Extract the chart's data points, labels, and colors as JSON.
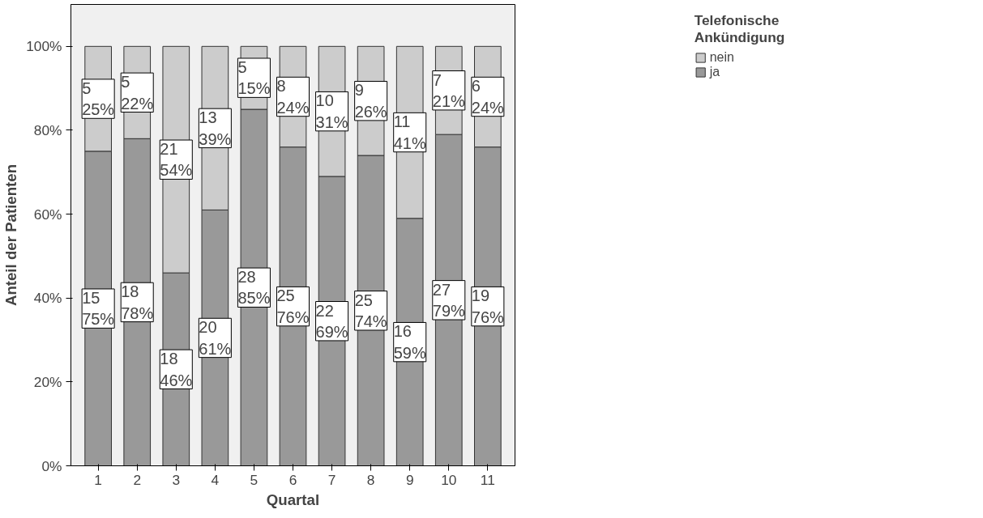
{
  "chart_data": {
    "type": "bar",
    "stacked": true,
    "xlabel": "Quartal",
    "ylabel": "Anteil der Patienten",
    "legend_title": "Telefonische Ankündigung",
    "categories": [
      "1",
      "2",
      "3",
      "4",
      "5",
      "6",
      "7",
      "8",
      "9",
      "10",
      "11"
    ],
    "series": [
      {
        "name": "ja",
        "color": "#999999",
        "values": [
          75,
          78,
          46,
          61,
          85,
          76,
          69,
          74,
          59,
          79,
          76
        ],
        "value_labels": [
          "15\n75%",
          "18\n78%",
          "18\n46%",
          "20\n61%",
          "28\n85%",
          "25\n76%",
          "22\n69%",
          "25\n74%",
          "16\n59%",
          "27\n79%",
          "19\n76%"
        ]
      },
      {
        "name": "nein",
        "color": "#cccccc",
        "values": [
          25,
          22,
          54,
          39,
          15,
          24,
          31,
          26,
          41,
          21,
          24
        ],
        "value_labels": [
          "5\n25%",
          "5\n22%",
          "21\n54%",
          "13\n39%",
          "5\n15%",
          "8\n24%",
          "10\n31%",
          "9\n26%",
          "11\n41%",
          "7\n21%",
          "6\n24%"
        ]
      }
    ],
    "ylim": [
      0,
      110
    ],
    "yticks": [
      {
        "value": 0,
        "label": "0%"
      },
      {
        "value": 20,
        "label": "20%"
      },
      {
        "value": 40,
        "label": "40%"
      },
      {
        "value": 60,
        "label": "60%"
      },
      {
        "value": 80,
        "label": "80%"
      },
      {
        "value": 100,
        "label": "100%"
      }
    ],
    "grid": false,
    "legend": "top right"
  }
}
